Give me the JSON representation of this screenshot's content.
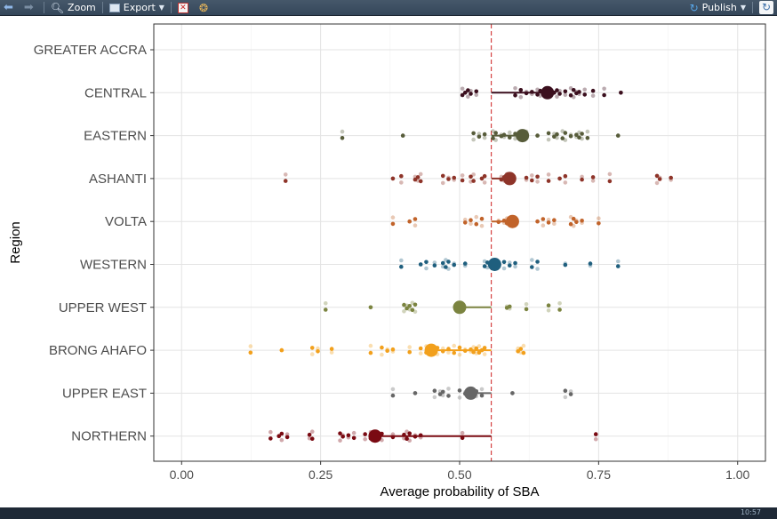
{
  "toolbar": {
    "zoom_label": "Zoom",
    "export_label": "Export",
    "publish_label": "Publish"
  },
  "taskbar": {
    "clock": "10:57"
  },
  "chart_data": {
    "type": "scatter",
    "title": "",
    "xlabel": "Average probability of SBA",
    "ylabel": "Region",
    "xlim": [
      -0.05,
      1.05
    ],
    "x_ticks": [
      0.0,
      0.25,
      0.5,
      0.75,
      1.0
    ],
    "x_tick_labels": [
      "0.00",
      "0.25",
      "0.50",
      "0.75",
      "1.00"
    ],
    "reference_line": {
      "x": 0.557,
      "style": "dashed",
      "color": "#cc1f1f"
    },
    "grid": true,
    "legend": "none",
    "categories": [
      "GREATER ACCRA",
      "CENTRAL",
      "EASTERN",
      "ASHANTI",
      "VOLTA",
      "WESTERN",
      "UPPER WEST",
      "BRONG AHAFO",
      "UPPER EAST",
      "NORTHERN"
    ],
    "series": [
      {
        "region": "GREATER ACCRA",
        "color": "#000000",
        "mean": null,
        "points": []
      },
      {
        "region": "CENTRAL",
        "color": "#3b0f1e",
        "mean": 0.658,
        "points": [
          0.505,
          0.51,
          0.515,
          0.52,
          0.53,
          0.6,
          0.61,
          0.62,
          0.63,
          0.64,
          0.645,
          0.655,
          0.67,
          0.675,
          0.68,
          0.69,
          0.7,
          0.705,
          0.71,
          0.715,
          0.725,
          0.74,
          0.76,
          0.79
        ]
      },
      {
        "region": "EASTERN",
        "color": "#575c3a",
        "mean": 0.613,
        "points": [
          0.289,
          0.398,
          0.525,
          0.535,
          0.545,
          0.56,
          0.565,
          0.575,
          0.58,
          0.59,
          0.6,
          0.62,
          0.64,
          0.66,
          0.67,
          0.675,
          0.685,
          0.69,
          0.7,
          0.71,
          0.715,
          0.72,
          0.73,
          0.785
        ]
      },
      {
        "region": "ASHANTI",
        "color": "#8e3429",
        "mean": 0.59,
        "points": [
          0.187,
          0.38,
          0.395,
          0.42,
          0.425,
          0.43,
          0.47,
          0.48,
          0.49,
          0.505,
          0.52,
          0.525,
          0.54,
          0.545,
          0.575,
          0.58,
          0.585,
          0.59,
          0.595,
          0.62,
          0.63,
          0.64,
          0.66,
          0.68,
          0.69,
          0.72,
          0.74,
          0.77,
          0.855,
          0.86,
          0.88
        ]
      },
      {
        "region": "VOLTA",
        "color": "#c1632a",
        "mean": 0.595,
        "points": [
          0.38,
          0.41,
          0.42,
          0.51,
          0.52,
          0.53,
          0.54,
          0.57,
          0.58,
          0.585,
          0.59,
          0.6,
          0.64,
          0.65,
          0.66,
          0.67,
          0.7,
          0.705,
          0.71,
          0.72,
          0.75
        ]
      },
      {
        "region": "WESTERN",
        "color": "#1f5f7e",
        "mean": 0.563,
        "points": [
          0.395,
          0.43,
          0.44,
          0.455,
          0.47,
          0.475,
          0.48,
          0.49,
          0.51,
          0.545,
          0.55,
          0.56,
          0.57,
          0.58,
          0.59,
          0.6,
          0.63,
          0.64,
          0.69,
          0.735,
          0.785
        ]
      },
      {
        "region": "UPPER WEST",
        "color": "#7b8440",
        "mean": 0.5,
        "points": [
          0.259,
          0.34,
          0.4,
          0.405,
          0.41,
          0.415,
          0.42,
          0.585,
          0.59,
          0.62,
          0.66,
          0.68
        ]
      },
      {
        "region": "BRONG AHAFO",
        "color": "#f2a01c",
        "mean": 0.449,
        "points": [
          0.124,
          0.18,
          0.235,
          0.245,
          0.27,
          0.34,
          0.36,
          0.37,
          0.38,
          0.41,
          0.43,
          0.44,
          0.45,
          0.46,
          0.47,
          0.48,
          0.49,
          0.5,
          0.51,
          0.52,
          0.525,
          0.53,
          0.535,
          0.54,
          0.545,
          0.605,
          0.61,
          0.615
        ]
      },
      {
        "region": "UPPER EAST",
        "color": "#666666",
        "mean": 0.52,
        "points": [
          0.38,
          0.42,
          0.455,
          0.465,
          0.47,
          0.48,
          0.5,
          0.51,
          0.52,
          0.525,
          0.53,
          0.54,
          0.595,
          0.69,
          0.7
        ]
      },
      {
        "region": "NORTHERN",
        "color": "#7a0a12",
        "mean": 0.348,
        "points": [
          0.16,
          0.175,
          0.18,
          0.19,
          0.23,
          0.235,
          0.285,
          0.29,
          0.3,
          0.31,
          0.33,
          0.34,
          0.35,
          0.36,
          0.38,
          0.4,
          0.405,
          0.41,
          0.42,
          0.43,
          0.505,
          0.745
        ]
      }
    ]
  }
}
